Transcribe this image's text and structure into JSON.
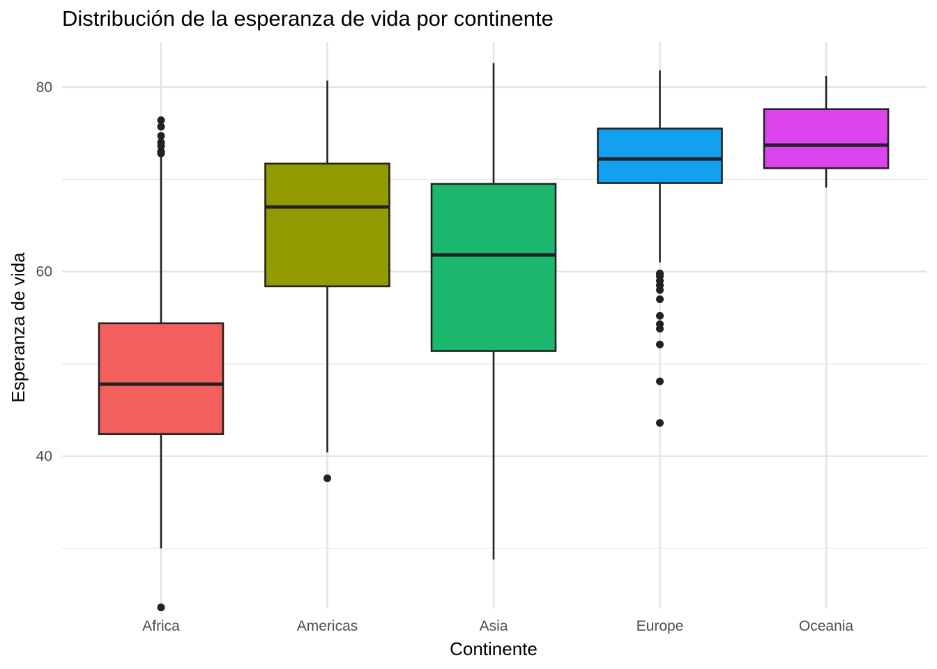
{
  "chart_data": {
    "type": "boxplot",
    "title": "Distribución de la esperanza de vida por continente",
    "xlabel": "Continente",
    "ylabel": "Esperanza de vida",
    "ylim": [
      23.5,
      84.9
    ],
    "yticks": [
      40,
      60,
      80
    ],
    "minor_yticks": [
      30,
      50,
      70
    ],
    "grid": true,
    "legend": "none",
    "categories": [
      "Africa",
      "Americas",
      "Asia",
      "Europe",
      "Oceania"
    ],
    "boxes": [
      {
        "category": "Africa",
        "color": "#F25F5C",
        "whisker_low": 30.0,
        "q1": 42.4,
        "median": 47.8,
        "q3": 54.4,
        "whisker_high": 72.8,
        "outliers": [
          23.6,
          72.8,
          73.0,
          73.6,
          74.0,
          74.7,
          75.7,
          76.4
        ]
      },
      {
        "category": "Americas",
        "color": "#919A00",
        "whisker_low": 40.4,
        "q1": 58.4,
        "median": 67.0,
        "q3": 71.7,
        "whisker_high": 80.7,
        "outliers": [
          37.6
        ]
      },
      {
        "category": "Asia",
        "color": "#1BB76D",
        "whisker_low": 28.8,
        "q1": 51.4,
        "median": 61.8,
        "q3": 69.5,
        "whisker_high": 82.6,
        "outliers": []
      },
      {
        "category": "Europe",
        "color": "#14A0F0",
        "whisker_low": 61.0,
        "q1": 69.6,
        "median": 72.2,
        "q3": 75.5,
        "whisker_high": 81.8,
        "outliers": [
          43.6,
          48.1,
          52.1,
          53.8,
          54.3,
          55.2,
          57.0,
          58.0,
          58.5,
          59.0,
          59.5,
          59.8
        ]
      },
      {
        "category": "Oceania",
        "color": "#DC45EE",
        "whisker_low": 69.1,
        "q1": 71.2,
        "median": 73.7,
        "q3": 77.6,
        "whisker_high": 81.2,
        "outliers": []
      }
    ]
  }
}
